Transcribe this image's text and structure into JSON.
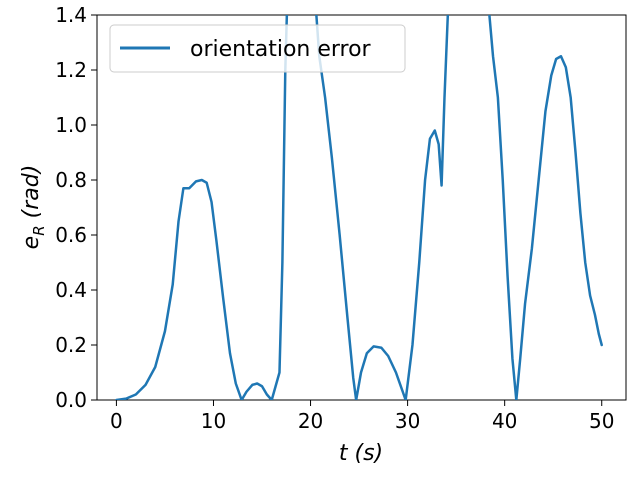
{
  "chart_data": {
    "type": "line",
    "xlabel": "t (s)",
    "ylabel": "e_R (rad)",
    "xlim": [
      -2,
      52.5
    ],
    "ylim": [
      0,
      1.4
    ],
    "x_ticks": [
      0,
      10,
      20,
      30,
      40,
      50
    ],
    "y_ticks": [
      0.0,
      0.2,
      0.4,
      0.6,
      0.8,
      1.0,
      1.2,
      1.4
    ],
    "x_tick_labels": [
      "0",
      "10",
      "20",
      "30",
      "40",
      "50"
    ],
    "y_tick_labels": [
      "0.0",
      "0.2",
      "0.4",
      "0.6",
      "0.8",
      "1.0",
      "1.2",
      "1.4"
    ],
    "grid": false,
    "legend_position": "top-left",
    "series": [
      {
        "name": "orientation error",
        "color": "#1f77b4",
        "points": [
          [
            0,
            0
          ],
          [
            1,
            0.005
          ],
          [
            2,
            0.02
          ],
          [
            3,
            0.055
          ],
          [
            4,
            0.12
          ],
          [
            5,
            0.25
          ],
          [
            5.8,
            0.42
          ],
          [
            6.4,
            0.65
          ],
          [
            6.9,
            0.77
          ],
          [
            7.5,
            0.77
          ],
          [
            8.2,
            0.795
          ],
          [
            8.8,
            0.8
          ],
          [
            9.3,
            0.79
          ],
          [
            9.8,
            0.72
          ],
          [
            10.3,
            0.58
          ],
          [
            11,
            0.37
          ],
          [
            11.7,
            0.17
          ],
          [
            12.3,
            0.06
          ],
          [
            12.9,
            0
          ],
          [
            13.4,
            0.03
          ],
          [
            14,
            0.055
          ],
          [
            14.5,
            0.06
          ],
          [
            15,
            0.05
          ],
          [
            15.5,
            0.02
          ],
          [
            16,
            0
          ],
          [
            16.4,
            0.05
          ],
          [
            16.8,
            0.1
          ],
          [
            17.1,
            0.5
          ],
          [
            17.4,
            1.2
          ],
          [
            17.6,
            1.45
          ],
          [
            20.5,
            1.45
          ],
          [
            20.9,
            1.25
          ],
          [
            21.5,
            1.1
          ],
          [
            22.2,
            0.88
          ],
          [
            23,
            0.6
          ],
          [
            23.8,
            0.3
          ],
          [
            24.4,
            0.08
          ],
          [
            24.7,
            0
          ],
          [
            25.2,
            0.1
          ],
          [
            25.8,
            0.17
          ],
          [
            26.5,
            0.195
          ],
          [
            27.3,
            0.19
          ],
          [
            28,
            0.16
          ],
          [
            28.8,
            0.1
          ],
          [
            29.5,
            0.03
          ],
          [
            29.8,
            0
          ],
          [
            30.5,
            0.2
          ],
          [
            31.2,
            0.5
          ],
          [
            31.8,
            0.8
          ],
          [
            32.3,
            0.95
          ],
          [
            32.8,
            0.98
          ],
          [
            33.2,
            0.93
          ],
          [
            33.5,
            0.78
          ],
          [
            33.8,
            1.1
          ],
          [
            34.2,
            1.45
          ],
          [
            38.3,
            1.45
          ],
          [
            38.8,
            1.25
          ],
          [
            39.3,
            1.1
          ],
          [
            39.8,
            0.8
          ],
          [
            40.3,
            0.45
          ],
          [
            40.8,
            0.15
          ],
          [
            41.2,
            0
          ],
          [
            41.6,
            0.15
          ],
          [
            42.1,
            0.35
          ],
          [
            42.8,
            0.55
          ],
          [
            43.5,
            0.8
          ],
          [
            44.2,
            1.05
          ],
          [
            44.8,
            1.18
          ],
          [
            45.3,
            1.24
          ],
          [
            45.8,
            1.25
          ],
          [
            46.3,
            1.21
          ],
          [
            46.8,
            1.1
          ],
          [
            47.3,
            0.9
          ],
          [
            47.8,
            0.68
          ],
          [
            48.3,
            0.5
          ],
          [
            48.8,
            0.38
          ],
          [
            49.3,
            0.31
          ],
          [
            49.7,
            0.24
          ],
          [
            50,
            0.2
          ]
        ]
      }
    ]
  }
}
